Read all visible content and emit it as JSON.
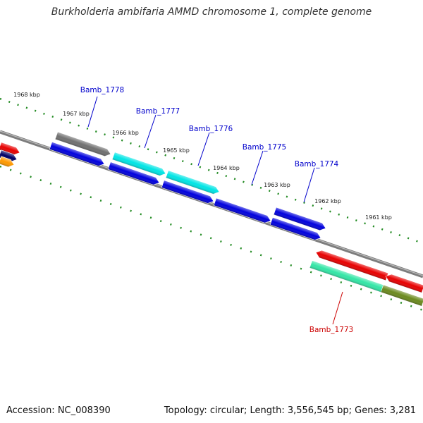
{
  "title": "Burkholderia ambifaria AMMD chromosome 1, complete genome",
  "footer": {
    "accession": "Accession: NC_008390",
    "summary": "Topology: circular; Length: 3,556,545 bp; Genes: 3,281"
  },
  "ticks": [
    "1968 kbp",
    "1967 kbp",
    "1966 kbp",
    "1965 kbp",
    "1964 kbp",
    "1963 kbp",
    "1962 kbp",
    "1961 kbp"
  ],
  "gene_labels": {
    "b1778": "Bamb_1778",
    "b1777": "Bamb_1777",
    "b1776": "Bamb_1776",
    "b1775": "Bamb_1775",
    "b1774": "Bamb_1774",
    "b1773": "Bamb_1773"
  },
  "colors": {
    "blue": "#0000dd",
    "cyan": "#00e5e5",
    "gray": "#707070",
    "red": "#e80000",
    "mint": "#33e6a6",
    "olive": "#6b8a1e",
    "orange": "#ff9900",
    "navy": "#000066",
    "backbone": "#8a8a8a",
    "tick": "#228b22",
    "label_forward": "#0000cc",
    "label_reverse": "#cc0000"
  }
}
